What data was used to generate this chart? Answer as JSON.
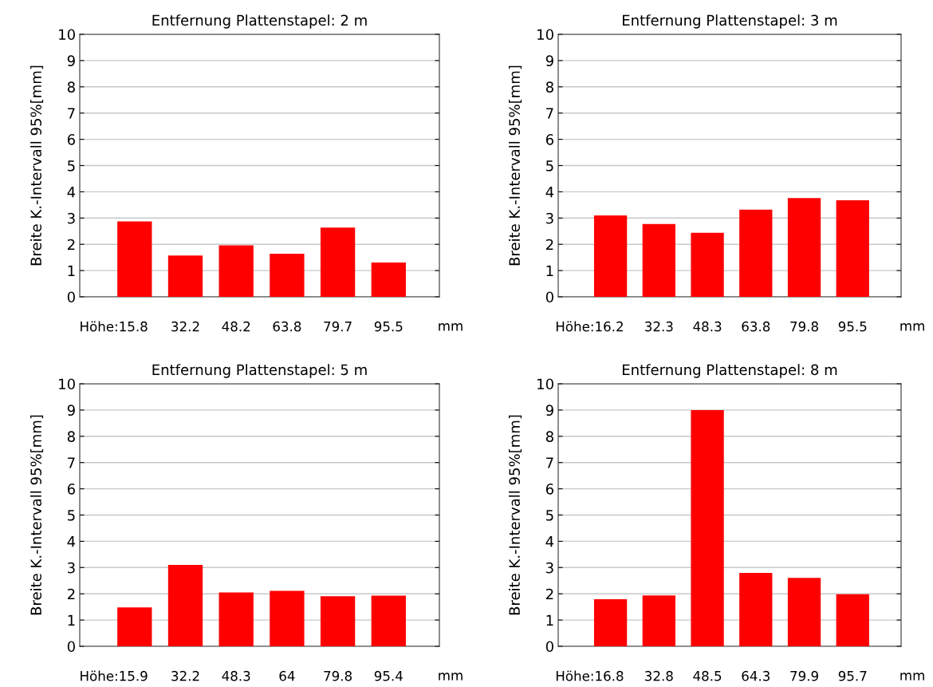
{
  "chart_data": [
    {
      "type": "bar",
      "title": "Entfernung Plattenstapel: 2 m",
      "ylabel": "Breite K.-Intervall 95%[mm]",
      "xlabel": "mm",
      "categories": [
        "Höhe:15.8",
        "32.2",
        "48.2",
        "63.8",
        "79.7",
        "95.5"
      ],
      "values": [
        2.87,
        1.57,
        1.96,
        1.64,
        2.64,
        1.31
      ],
      "color": "#ff0000",
      "ylim": [
        0,
        10
      ],
      "yticks": [
        0,
        1,
        2,
        3,
        4,
        5,
        6,
        7,
        8,
        9,
        10
      ],
      "grid": "y",
      "legend": false
    },
    {
      "type": "bar",
      "title": "Entfernung Plattenstapel: 3 m",
      "ylabel": "Breite K.-Intervall 95%[mm]",
      "xlabel": "mm",
      "categories": [
        "Höhe:16.2",
        "32.3",
        "48.3",
        "63.8",
        "79.8",
        "95.5"
      ],
      "values": [
        3.1,
        2.77,
        2.44,
        3.32,
        3.76,
        3.68
      ],
      "color": "#ff0000",
      "ylim": [
        0,
        10
      ],
      "yticks": [
        0,
        1,
        2,
        3,
        4,
        5,
        6,
        7,
        8,
        9,
        10
      ],
      "grid": "y",
      "legend": false
    },
    {
      "type": "bar",
      "title": "Entfernung Plattenstapel: 5 m",
      "ylabel": "Breite K.-Intervall 95%[mm]",
      "xlabel": "mm",
      "categories": [
        "Höhe:15.9",
        "32.2",
        "48.3",
        "64",
        "79.8",
        "95.4"
      ],
      "values": [
        1.48,
        3.1,
        2.05,
        2.11,
        1.91,
        1.93
      ],
      "color": "#ff0000",
      "ylim": [
        0,
        10
      ],
      "yticks": [
        0,
        1,
        2,
        3,
        4,
        5,
        6,
        7,
        8,
        9,
        10
      ],
      "grid": "y",
      "legend": false
    },
    {
      "type": "bar",
      "title": "Entfernung Plattenstapel: 8 m",
      "ylabel": "Breite K.-Intervall 95%[mm]",
      "xlabel": "mm",
      "categories": [
        "Höhe:16.8",
        "32.8",
        "48.5",
        "64.3",
        "79.9",
        "95.7"
      ],
      "values": [
        1.79,
        1.94,
        9.0,
        2.8,
        2.61,
        1.98
      ],
      "color": "#ff0000",
      "ylim": [
        0,
        10
      ],
      "yticks": [
        0,
        1,
        2,
        3,
        4,
        5,
        6,
        7,
        8,
        9,
        10
      ],
      "grid": "y",
      "legend": false
    }
  ]
}
